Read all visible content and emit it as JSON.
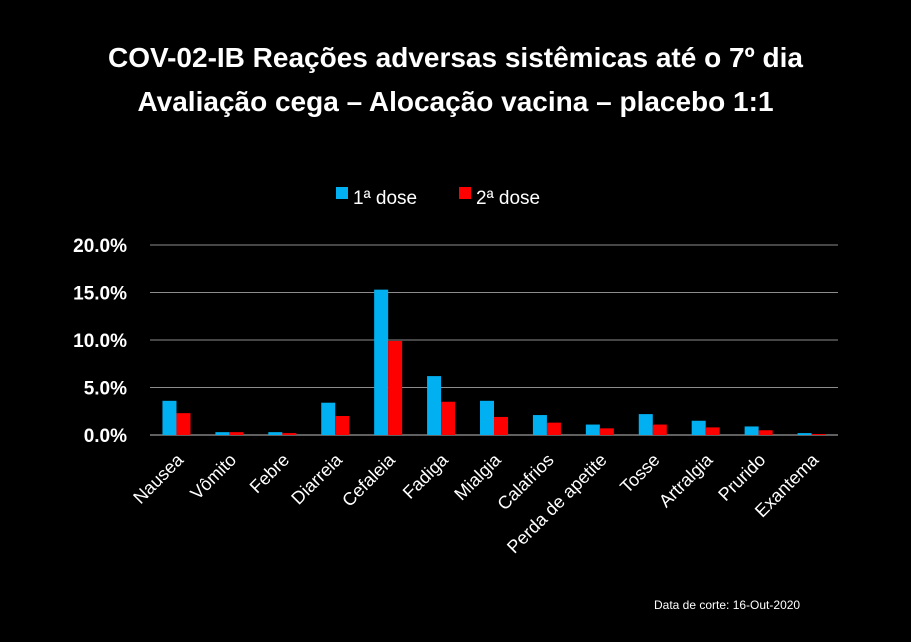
{
  "chart_data": {
    "type": "bar",
    "title": "COV-02-IB Reações adversas sistêmicas até o 7º dia",
    "subtitle": "Avaliação cega – Alocação vacina – placebo 1:1",
    "categories": [
      "Nausea",
      "Vômito",
      "Febre",
      "Diarreia",
      "Cefaleia",
      "Fadiga",
      "Mialgia",
      "Calafrios",
      "Perda de apetite",
      "Tosse",
      "Artralgia",
      "Prurido",
      "Exantema"
    ],
    "series": [
      {
        "name": "1ª dose",
        "color": "#00b0f0",
        "values": [
          3.6,
          0.3,
          0.3,
          3.4,
          15.3,
          6.2,
          3.6,
          2.1,
          1.1,
          2.2,
          1.5,
          0.9,
          0.2
        ]
      },
      {
        "name": "2ª dose",
        "color": "#ff0000",
        "values": [
          2.3,
          0.3,
          0.2,
          2.0,
          9.9,
          3.5,
          1.9,
          1.3,
          0.7,
          1.1,
          0.8,
          0.5,
          0.1
        ]
      }
    ],
    "ylim": [
      0,
      20
    ],
    "yticks": [
      "0.0%",
      "5.0%",
      "10.0%",
      "15.0%",
      "20.0%"
    ],
    "grid": true,
    "legend_position": "top-center"
  },
  "footnote": "Data de corte: 16-Out-2020"
}
